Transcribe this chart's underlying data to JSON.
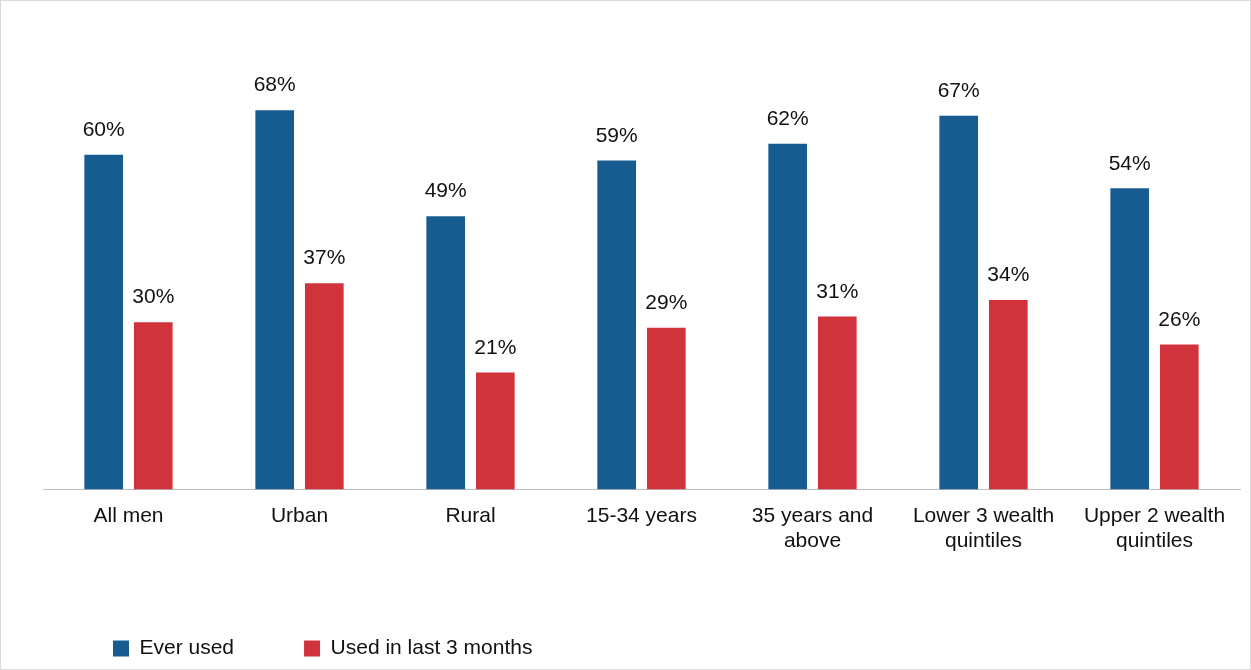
{
  "chart_data": {
    "type": "bar",
    "categories": [
      "All men",
      "Urban",
      "Rural",
      "15-34 years",
      "35 years and above",
      "Lower 3 wealth quintiles",
      "Upper 2 wealth quintiles"
    ],
    "series": [
      {
        "name": "Ever used",
        "color": "#175c91",
        "values": [
          60,
          68,
          49,
          59,
          62,
          67,
          54
        ],
        "value_labels": [
          "60%",
          "68%",
          "49%",
          "59%",
          "62%",
          "67%",
          "54%"
        ]
      },
      {
        "name": "Used in last 3 months",
        "color": "#d0333c",
        "values": [
          30,
          37,
          21,
          29,
          31,
          34,
          26
        ],
        "value_labels": [
          "30%",
          "37%",
          "21%",
          "29%",
          "31%",
          "34%",
          "26%"
        ]
      }
    ],
    "legend": "bottom",
    "grid": false,
    "tick_labels": "x"
  }
}
